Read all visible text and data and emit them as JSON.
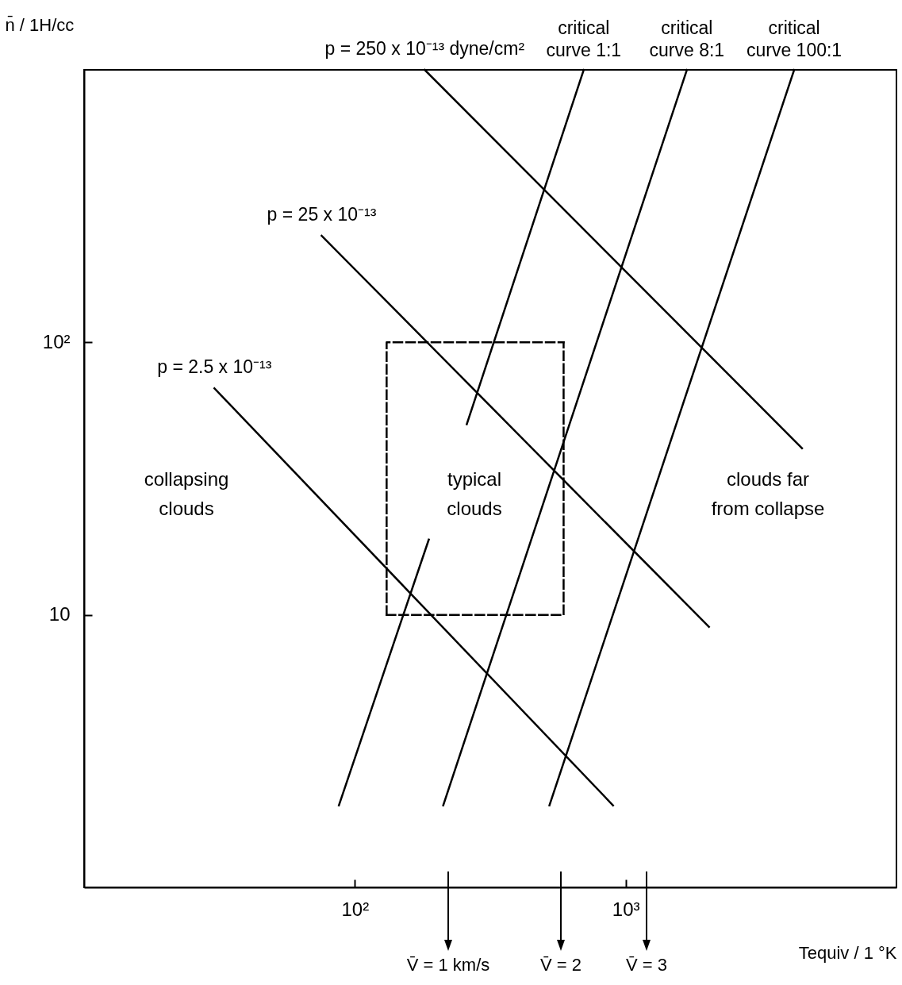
{
  "chart_data": {
    "type": "line",
    "xlabel": "Tequiv / 1 °K",
    "ylabel": "n̄ / 1H/cc",
    "log": "xy",
    "grid": false,
    "marker": "none",
    "xlim": [
      10,
      10000
    ],
    "ylim": [
      1,
      1000
    ],
    "xticks": [
      {
        "value": 100,
        "label": "10²"
      },
      {
        "value": 1000,
        "label": "10³"
      }
    ],
    "yticks": [
      {
        "value": 10,
        "label": "10"
      },
      {
        "value": 100,
        "label": "10²"
      }
    ],
    "series": [
      {
        "name": "p = 250 x 10⁻¹³ dyne/cm²",
        "color": "#000000",
        "x": [
          181,
          4480
        ],
        "values": [
          1000,
          40.9
        ]
      },
      {
        "name": "p = 25 x 10⁻¹³",
        "color": "#000000",
        "x": [
          75.4,
          2030
        ],
        "values": [
          246,
          9.04
        ]
      },
      {
        "name": "p = 2.5 x 10⁻¹³",
        "color": "#000000",
        "x": [
          30.3,
          898
        ],
        "values": [
          67.8,
          2.0
        ]
      },
      {
        "name": "critical\ncurve 1:1",
        "color": "#000000",
        "x": [
          87.3,
          187.5,
          null,
          259,
          700
        ],
        "values": [
          2.0,
          18.9,
          null,
          50.1,
          1000
        ]
      },
      {
        "name": "critical\ncurve 8:1",
        "color": "#000000",
        "x": [
          212,
          1683
        ],
        "values": [
          2.0,
          1000
        ]
      },
      {
        "name": "critical\ncurve 100:1",
        "color": "#000000",
        "x": [
          523,
          4190
        ],
        "values": [
          2.0,
          1000
        ]
      },
      {
        "color": "#000000",
        "line_style": "dashed",
        "x": [
          131,
          590,
          590
        ],
        "values": [
          10,
          10,
          100
        ]
      },
      {
        "color": "#000000",
        "line_style": "dashed",
        "x": [
          131,
          131,
          590
        ],
        "values": [
          10,
          100,
          100
        ]
      }
    ],
    "annotations": [
      "collapsing\nclouds",
      "typical\nclouds",
      "clouds  far\nfrom  collapse",
      "V̄ = 1 km/s",
      "V̄ = 2",
      "V̄ = 3"
    ]
  }
}
